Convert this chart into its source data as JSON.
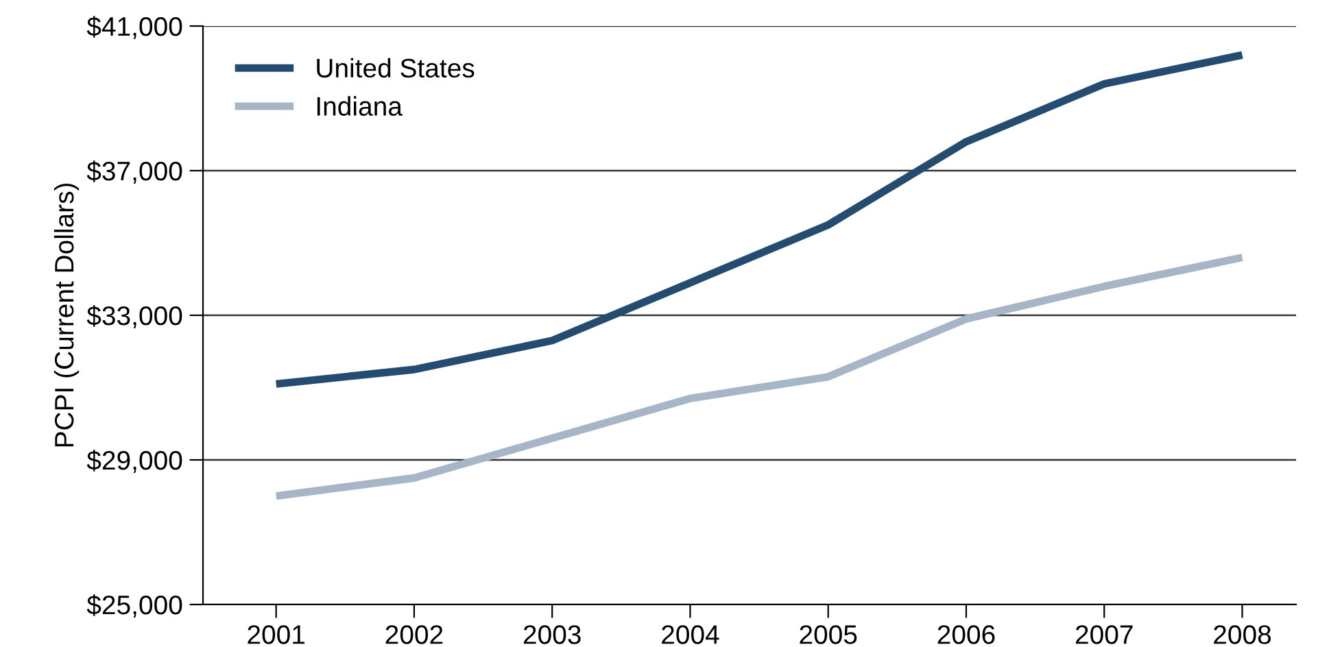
{
  "chart_data": {
    "type": "line",
    "ylabel": "PCPI (Current Dollars)",
    "categories": [
      "2001",
      "2002",
      "2003",
      "2004",
      "2005",
      "2006",
      "2007",
      "2008"
    ],
    "series": [
      {
        "name": "United States",
        "color": "#244b70",
        "values": [
          31100,
          31500,
          32300,
          33900,
          35500,
          37800,
          39400,
          40200
        ]
      },
      {
        "name": "Indiana",
        "color": "#a7b6c7",
        "values": [
          28000,
          28500,
          29600,
          30700,
          31300,
          32900,
          33800,
          34600
        ]
      }
    ],
    "ylim": [
      25000,
      41000
    ],
    "yticks": [
      {
        "value": 25000,
        "label": "$25,000"
      },
      {
        "value": 29000,
        "label": "$29,000"
      },
      {
        "value": 33000,
        "label": "$33,000"
      },
      {
        "value": 37000,
        "label": "$37,000"
      },
      {
        "value": 41000,
        "label": "$41,000"
      }
    ],
    "grid": "y",
    "legend": "top left",
    "marker": "none",
    "line_style": "solid"
  }
}
